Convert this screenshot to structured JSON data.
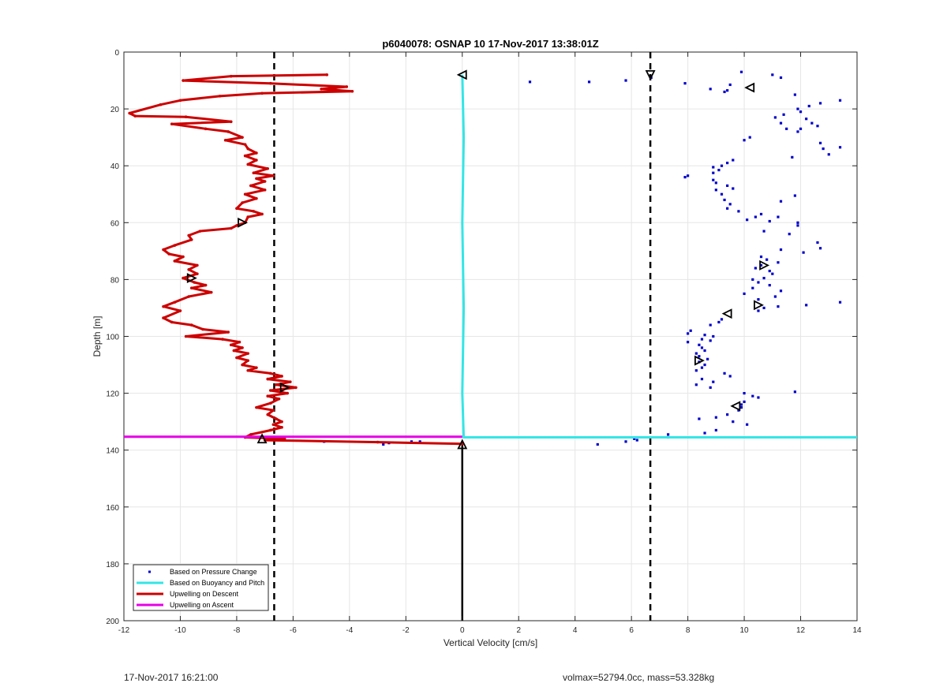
{
  "chart_data": {
    "type": "scatter",
    "title": "p6040078: OSNAP 10 17-Nov-2017 13:38:01Z",
    "xlabel": "Vertical Velocity [cm/s]",
    "ylabel": "Depth [m]",
    "xlim": [
      -12,
      14
    ],
    "ylim": [
      0,
      200
    ],
    "y_reversed": true,
    "grid": true,
    "legend_position": "bottom-left",
    "xticks": [
      -12,
      -10,
      -8,
      -6,
      -4,
      -2,
      0,
      2,
      4,
      6,
      8,
      10,
      12,
      14
    ],
    "yticks": [
      0,
      20,
      40,
      60,
      80,
      100,
      120,
      140,
      160,
      180,
      200
    ],
    "series": [
      {
        "name": "Based on Pressure Change",
        "kind": "points",
        "color": "#0000cc",
        "points": [
          [
            9.9,
            7
          ],
          [
            11.0,
            8
          ],
          [
            11.3,
            9
          ],
          [
            6.7,
            9
          ],
          [
            2.4,
            10.5
          ],
          [
            4.5,
            10.5
          ],
          [
            5.8,
            10
          ],
          [
            7.9,
            11
          ],
          [
            9.5,
            11.5
          ],
          [
            8.8,
            13
          ],
          [
            9.4,
            13.5
          ],
          [
            9.3,
            14
          ],
          [
            11.8,
            15
          ],
          [
            13.4,
            17
          ],
          [
            12.7,
            18
          ],
          [
            12.3,
            19
          ],
          [
            11.9,
            20
          ],
          [
            12.0,
            21
          ],
          [
            11.4,
            22
          ],
          [
            11.1,
            23
          ],
          [
            12.2,
            23.5
          ],
          [
            11.3,
            25
          ],
          [
            12.4,
            25
          ],
          [
            12.6,
            26
          ],
          [
            11.5,
            27
          ],
          [
            12.0,
            27
          ],
          [
            11.9,
            28
          ],
          [
            10.2,
            30
          ],
          [
            10.0,
            31
          ],
          [
            12.7,
            32
          ],
          [
            13.4,
            33.5
          ],
          [
            12.8,
            34
          ],
          [
            13.0,
            36
          ],
          [
            11.7,
            37
          ],
          [
            9.6,
            38
          ],
          [
            9.4,
            39
          ],
          [
            9.2,
            40
          ],
          [
            8.9,
            40.5
          ],
          [
            9.1,
            41.5
          ],
          [
            8.9,
            42.5
          ],
          [
            8.0,
            43.5
          ],
          [
            7.9,
            44
          ],
          [
            8.9,
            45
          ],
          [
            9.0,
            46
          ],
          [
            9.4,
            47
          ],
          [
            9.6,
            48
          ],
          [
            9.0,
            48.5
          ],
          [
            9.2,
            50
          ],
          [
            11.8,
            50.5
          ],
          [
            9.3,
            52
          ],
          [
            11.3,
            52.5
          ],
          [
            9.5,
            53.5
          ],
          [
            9.4,
            55
          ],
          [
            9.8,
            56
          ],
          [
            10.6,
            57
          ],
          [
            10.4,
            58
          ],
          [
            11.2,
            58
          ],
          [
            10.1,
            59
          ],
          [
            10.9,
            59.5
          ],
          [
            11.9,
            60
          ],
          [
            11.9,
            61
          ],
          [
            10.7,
            63
          ],
          [
            11.6,
            64
          ],
          [
            12.6,
            67
          ],
          [
            12.7,
            69
          ],
          [
            11.3,
            69.5
          ],
          [
            12.1,
            70.5
          ],
          [
            10.6,
            72
          ],
          [
            10.8,
            73
          ],
          [
            11.2,
            74
          ],
          [
            10.6,
            75
          ],
          [
            10.4,
            76
          ],
          [
            10.9,
            77
          ],
          [
            11.0,
            78
          ],
          [
            10.7,
            79.5
          ],
          [
            10.3,
            80
          ],
          [
            10.5,
            81
          ],
          [
            10.9,
            82
          ],
          [
            10.3,
            83
          ],
          [
            11.3,
            84
          ],
          [
            10.0,
            85
          ],
          [
            11.1,
            86
          ],
          [
            10.5,
            87
          ],
          [
            13.4,
            88
          ],
          [
            12.2,
            89
          ],
          [
            11.2,
            89.5
          ],
          [
            10.7,
            90
          ],
          [
            10.5,
            91
          ],
          [
            9.2,
            94
          ],
          [
            9.1,
            95
          ],
          [
            8.8,
            96
          ],
          [
            8.1,
            98
          ],
          [
            8.0,
            99
          ],
          [
            8.6,
            99.5
          ],
          [
            8.9,
            100
          ],
          [
            8.5,
            101
          ],
          [
            8.8,
            101.5
          ],
          [
            8.0,
            102
          ],
          [
            8.4,
            103
          ],
          [
            8.5,
            104
          ],
          [
            8.6,
            105
          ],
          [
            8.3,
            106
          ],
          [
            8.4,
            107
          ],
          [
            8.7,
            108
          ],
          [
            8.4,
            109
          ],
          [
            8.6,
            110
          ],
          [
            8.5,
            111
          ],
          [
            8.3,
            112
          ],
          [
            9.3,
            113
          ],
          [
            9.5,
            114
          ],
          [
            8.5,
            115
          ],
          [
            8.9,
            116
          ],
          [
            8.3,
            117
          ],
          [
            8.8,
            118
          ],
          [
            11.8,
            119.5
          ],
          [
            10.0,
            120
          ],
          [
            10.3,
            121
          ],
          [
            10.5,
            121.5
          ],
          [
            10.0,
            123
          ],
          [
            9.9,
            124
          ],
          [
            9.9,
            125
          ],
          [
            9.8,
            126
          ],
          [
            9.4,
            127.5
          ],
          [
            9.0,
            128.5
          ],
          [
            8.4,
            129
          ],
          [
            9.6,
            130
          ],
          [
            10.1,
            131
          ],
          [
            9.0,
            133
          ],
          [
            8.6,
            134
          ],
          [
            7.3,
            134.5
          ],
          [
            7.3,
            135.5
          ],
          [
            6.1,
            136
          ],
          [
            6.2,
            136.5
          ],
          [
            5.8,
            137
          ],
          [
            4.8,
            138
          ],
          [
            -1.5,
            137
          ],
          [
            -1.8,
            137
          ],
          [
            -2.6,
            137.5
          ],
          [
            -2.8,
            138
          ],
          [
            -4.9,
            137
          ],
          [
            0.0,
            137.5
          ]
        ]
      },
      {
        "name": "Based on Buoyancy and Pitch",
        "kind": "line",
        "color": "#33e6e6",
        "points": [
          [
            0.0,
            8
          ],
          [
            0.05,
            30
          ],
          [
            0.0,
            60
          ],
          [
            0.05,
            90
          ],
          [
            0.0,
            120
          ],
          [
            0.05,
            135.5
          ],
          [
            14,
            135.5
          ]
        ]
      },
      {
        "name": "Upwelling on Descent",
        "kind": "line",
        "color": "#cc0000",
        "points": [
          [
            -4.8,
            8
          ],
          [
            -8.2,
            8.5
          ],
          [
            -9.9,
            10
          ],
          [
            -6.8,
            11
          ],
          [
            -4.1,
            12.2
          ],
          [
            -5.0,
            13
          ],
          [
            -3.9,
            13.8
          ],
          [
            -7.1,
            14.5
          ],
          [
            -8.6,
            15.5
          ],
          [
            -10.0,
            17
          ],
          [
            -10.7,
            18.5
          ],
          [
            -11.8,
            21.5
          ],
          [
            -11.6,
            22.5
          ],
          [
            -9.8,
            22.8
          ],
          [
            -8.2,
            24.5
          ],
          [
            -10.3,
            25.3
          ],
          [
            -9.1,
            27
          ],
          [
            -8.3,
            28
          ],
          [
            -7.8,
            30
          ],
          [
            -8.4,
            31
          ],
          [
            -7.7,
            32.5
          ],
          [
            -7.6,
            34
          ],
          [
            -7.3,
            35.5
          ],
          [
            -7.7,
            36.5
          ],
          [
            -7.3,
            38
          ],
          [
            -7.6,
            39.5
          ],
          [
            -6.9,
            41
          ],
          [
            -7.4,
            42.5
          ],
          [
            -6.7,
            43.5
          ],
          [
            -7.3,
            44.5
          ],
          [
            -7.0,
            45.5
          ],
          [
            -7.5,
            47
          ],
          [
            -7.0,
            48.5
          ],
          [
            -7.7,
            50
          ],
          [
            -7.3,
            51.5
          ],
          [
            -7.8,
            53
          ],
          [
            -8.0,
            55
          ],
          [
            -7.4,
            56
          ],
          [
            -7.1,
            57
          ],
          [
            -7.6,
            58
          ],
          [
            -7.7,
            60
          ],
          [
            -8.0,
            61
          ],
          [
            -8.2,
            62
          ],
          [
            -9.3,
            63
          ],
          [
            -9.7,
            64.5
          ],
          [
            -9.6,
            66
          ],
          [
            -10.2,
            68
          ],
          [
            -10.6,
            69.5
          ],
          [
            -10.4,
            71
          ],
          [
            -9.9,
            72
          ],
          [
            -10.2,
            73.5
          ],
          [
            -9.4,
            75
          ],
          [
            -9.7,
            76.5
          ],
          [
            -9.4,
            78
          ],
          [
            -9.9,
            79.5
          ],
          [
            -9.5,
            81
          ],
          [
            -9.1,
            82
          ],
          [
            -9.6,
            83
          ],
          [
            -8.9,
            84.5
          ],
          [
            -9.7,
            86
          ],
          [
            -10.2,
            88
          ],
          [
            -10.6,
            89.5
          ],
          [
            -10.0,
            91
          ],
          [
            -10.6,
            93.5
          ],
          [
            -10.3,
            95
          ],
          [
            -9.6,
            96
          ],
          [
            -9.2,
            97.5
          ],
          [
            -8.3,
            98.5
          ],
          [
            -9.8,
            100
          ],
          [
            -8.5,
            101
          ],
          [
            -7.9,
            102
          ],
          [
            -8.2,
            103
          ],
          [
            -7.8,
            104
          ],
          [
            -8.1,
            105
          ],
          [
            -7.6,
            106
          ],
          [
            -8.0,
            107.5
          ],
          [
            -7.6,
            108.5
          ],
          [
            -7.8,
            110
          ],
          [
            -7.3,
            111
          ],
          [
            -7.6,
            112
          ],
          [
            -6.8,
            113
          ],
          [
            -6.4,
            114
          ],
          [
            -6.9,
            115
          ],
          [
            -6.1,
            116
          ],
          [
            -6.6,
            117
          ],
          [
            -5.9,
            118
          ],
          [
            -6.8,
            119
          ],
          [
            -6.2,
            120
          ],
          [
            -6.9,
            121
          ],
          [
            -6.5,
            122
          ],
          [
            -6.8,
            123.5
          ],
          [
            -7.3,
            125
          ],
          [
            -6.7,
            126
          ],
          [
            -6.9,
            127.5
          ],
          [
            -6.6,
            129
          ],
          [
            -6.4,
            130
          ],
          [
            -6.7,
            131
          ],
          [
            -6.4,
            132
          ],
          [
            -6.8,
            133
          ],
          [
            -7.5,
            134.5
          ],
          [
            -7.7,
            135.5
          ],
          [
            -6.3,
            136
          ],
          [
            -7.0,
            136.5
          ],
          [
            -3.0,
            137.2
          ],
          [
            0.0,
            137.8
          ]
        ]
      },
      {
        "name": "Upwelling on Ascent",
        "kind": "line",
        "color": "#e600e6",
        "points": [
          [
            -12,
            135.3
          ],
          [
            0.0,
            135.3
          ]
        ]
      }
    ],
    "reference_lines": [
      {
        "orientation": "vertical",
        "x": -6.67,
        "style": "dashed",
        "color": "#000000"
      },
      {
        "orientation": "vertical",
        "x": 6.67,
        "style": "dashed",
        "color": "#000000"
      },
      {
        "orientation": "vertical",
        "x": 0,
        "from": 137.5,
        "to": 200,
        "style": "solid",
        "color": "#000000"
      }
    ],
    "markers": [
      {
        "x": 0.0,
        "y": 8,
        "shape": "tri-left"
      },
      {
        "x": 6.67,
        "y": 8,
        "shape": "tri-down"
      },
      {
        "x": 10.2,
        "y": 12.5,
        "shape": "tri-left"
      },
      {
        "x": -7.8,
        "y": 60,
        "shape": "tri-right"
      },
      {
        "x": 10.7,
        "y": 75,
        "shape": "tri-right"
      },
      {
        "x": -9.6,
        "y": 79.5,
        "shape": "tri-right"
      },
      {
        "x": 10.5,
        "y": 89,
        "shape": "tri-right"
      },
      {
        "x": 9.4,
        "y": 92,
        "shape": "tri-left"
      },
      {
        "x": 8.4,
        "y": 108.5,
        "shape": "tri-right"
      },
      {
        "x": -6.3,
        "y": 118,
        "shape": "tri-right"
      },
      {
        "x": 9.7,
        "y": 124.5,
        "shape": "tri-left"
      },
      {
        "x": -7.1,
        "y": 136,
        "shape": "tri-up"
      },
      {
        "x": 0.0,
        "y": 138,
        "shape": "tri-up"
      }
    ]
  },
  "footer": {
    "left": "17-Nov-2017 16:21:00",
    "right": "volmax=52794.0cc, mass=53.328kg"
  }
}
